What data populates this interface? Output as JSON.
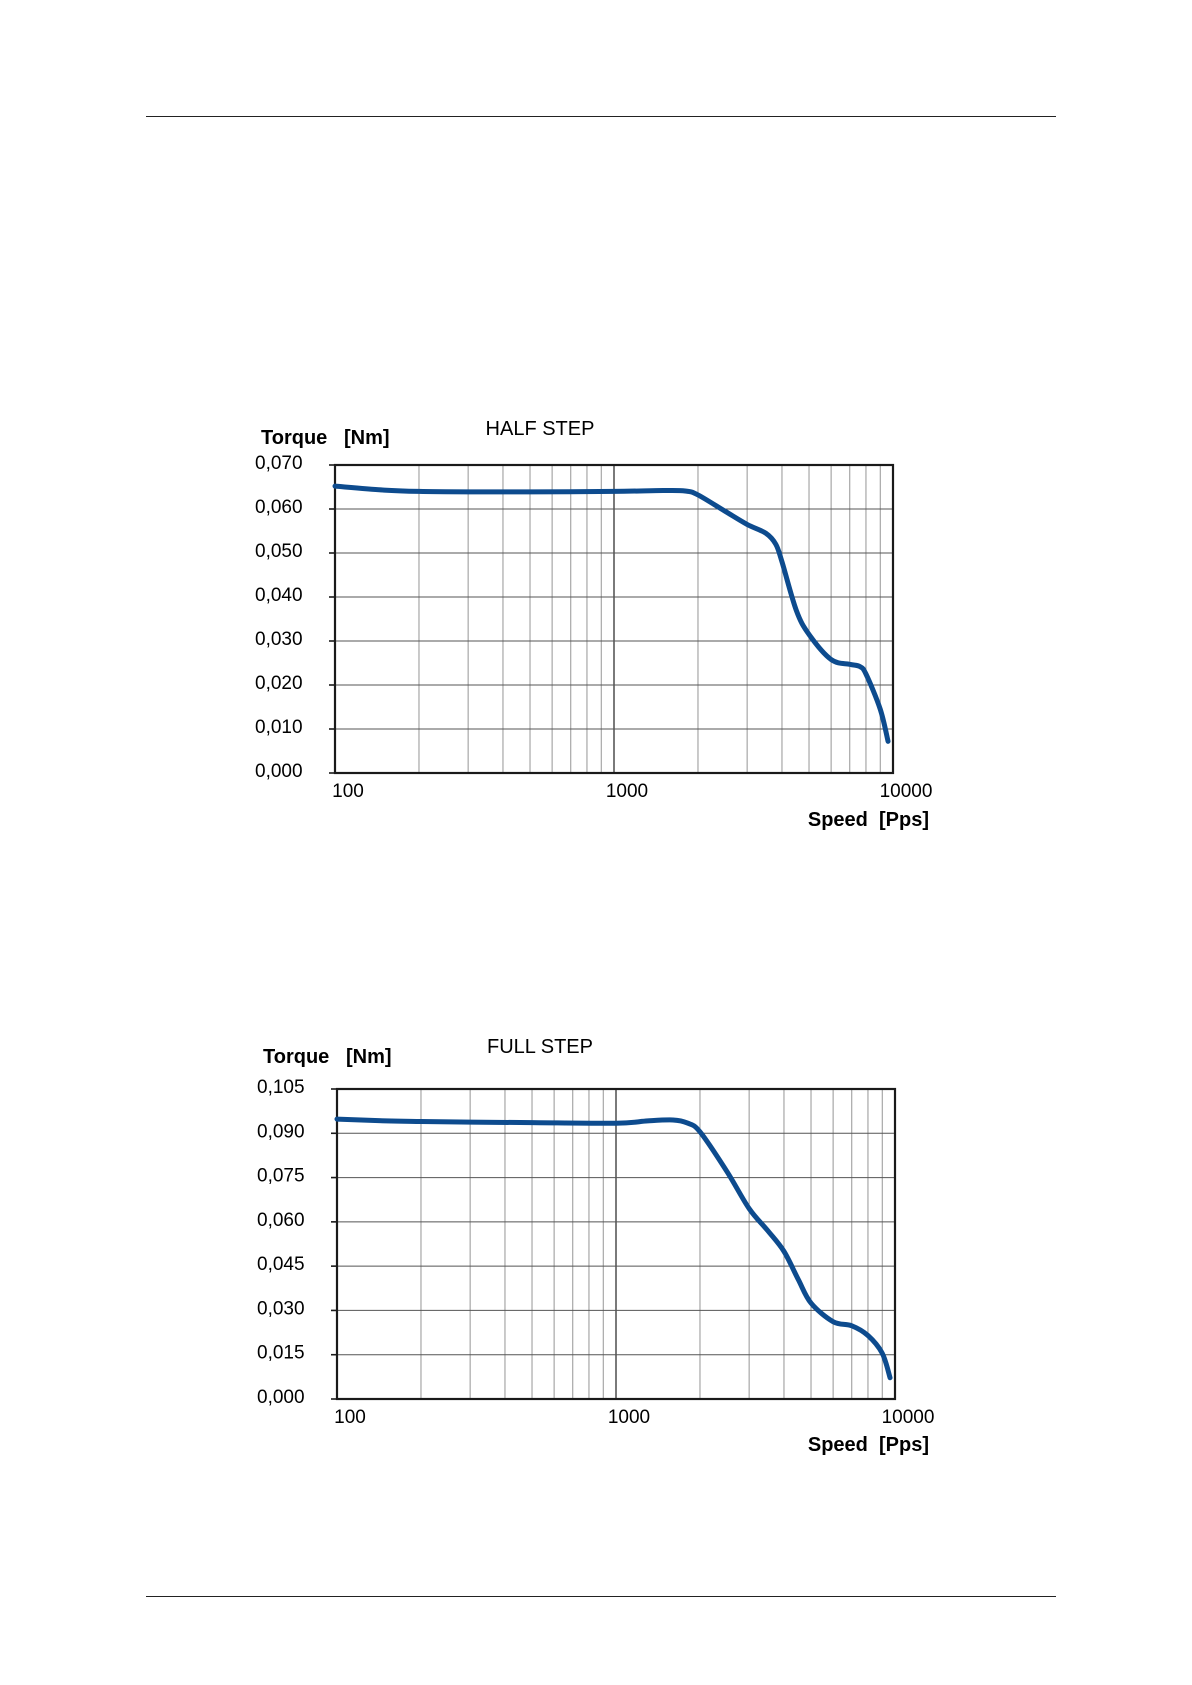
{
  "chart_data": [
    {
      "type": "line",
      "title": "HALF STEP",
      "ylabel": "Torque   [Nm]",
      "xlabel": "Speed  [Pps]",
      "xscale": "log",
      "xlim": [
        100,
        10000
      ],
      "ylim": [
        0,
        0.07
      ],
      "xticks": [
        100,
        1000,
        10000
      ],
      "xtick_labels": [
        "100",
        "1000",
        "10000"
      ],
      "yticks": [
        0,
        0.01,
        0.02,
        0.03,
        0.04,
        0.05,
        0.06,
        0.07
      ],
      "ytick_labels": [
        "0,000",
        "0,010",
        "0,020",
        "0,030",
        "0,040",
        "0,050",
        "0,060",
        "0,070"
      ],
      "grid": true,
      "color": "#0d4b8e",
      "series": [
        {
          "x": [
            100,
            150,
            200,
            300,
            500,
            1000,
            1500,
            1800,
            2000,
            2500,
            3000,
            3500,
            3800,
            4000,
            4500,
            5000,
            6000,
            7000,
            7600,
            8000,
            9000,
            9600
          ],
          "y": [
            0.0652,
            0.0643,
            0.064,
            0.0639,
            0.0639,
            0.064,
            0.0642,
            0.0641,
            0.0632,
            0.0595,
            0.0565,
            0.0545,
            0.052,
            0.048,
            0.037,
            0.0315,
            0.0258,
            0.0247,
            0.0242,
            0.0225,
            0.0145,
            0.0072
          ]
        }
      ]
    },
    {
      "type": "line",
      "title": "FULL STEP",
      "ylabel": "Torque   [Nm]",
      "xlabel": "Speed  [Pps]",
      "xscale": "log",
      "xlim": [
        100,
        10000
      ],
      "ylim": [
        0,
        0.105
      ],
      "xticks": [
        100,
        1000,
        10000
      ],
      "xtick_labels": [
        "100",
        "1000",
        "10000"
      ],
      "yticks": [
        0,
        0.015,
        0.03,
        0.045,
        0.06,
        0.075,
        0.09,
        0.105
      ],
      "ytick_labels": [
        "0,000",
        "0,015",
        "0,030",
        "0,045",
        "0,060",
        "0,075",
        "0,090",
        "0,105"
      ],
      "grid": true,
      "color": "#0d4b8e",
      "series": [
        {
          "x": [
            100,
            150,
            200,
            300,
            500,
            1000,
            1300,
            1600,
            1800,
            2000,
            2500,
            3000,
            3500,
            4000,
            4500,
            5000,
            6000,
            7000,
            8000,
            9000,
            9600
          ],
          "y": [
            0.0948,
            0.0942,
            0.094,
            0.0938,
            0.0936,
            0.0934,
            0.0942,
            0.0945,
            0.0935,
            0.0905,
            0.077,
            0.0645,
            0.057,
            0.05,
            0.0405,
            0.0325,
            0.0262,
            0.0248,
            0.0215,
            0.0155,
            0.0072
          ]
        }
      ]
    }
  ]
}
